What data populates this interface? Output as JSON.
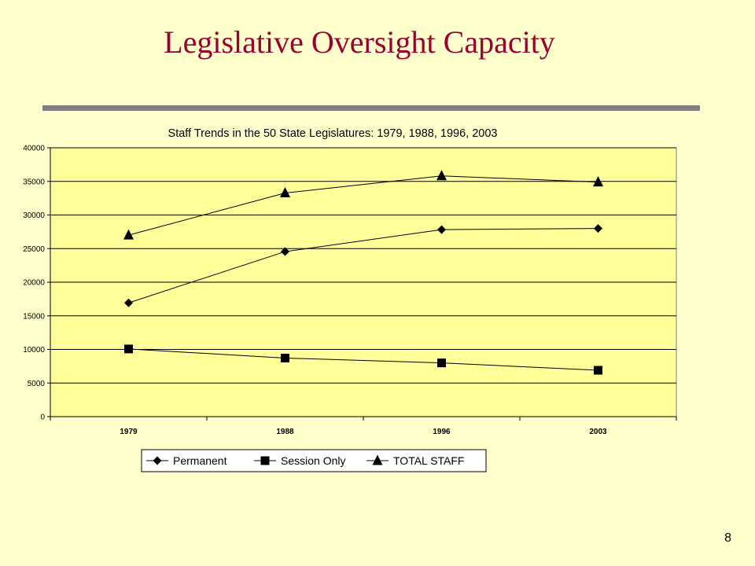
{
  "slide": {
    "title": "Legislative Oversight Capacity",
    "page_number": "8"
  },
  "colors": {
    "title": "#990033",
    "background": "#ffffcc",
    "plot_area": "#ffff99",
    "rule": "#808080"
  },
  "chart_data": {
    "type": "line",
    "title": "Staff Trends in the 50 State Legislatures: 1979, 1988, 1996, 2003",
    "xlabel": "",
    "ylabel": "",
    "categories": [
      "1979",
      "1988",
      "1996",
      "2003"
    ],
    "ylim": [
      0,
      40000
    ],
    "yticks": [
      0,
      5000,
      10000,
      15000,
      20000,
      25000,
      30000,
      35000,
      40000
    ],
    "grid": true,
    "legend_position": "bottom",
    "series": [
      {
        "name": "Permanent",
        "marker": "diamond",
        "values": [
          16930,
          24555,
          27822,
          28000
        ]
      },
      {
        "name": "Session Only",
        "marker": "square",
        "values": [
          10070,
          8715,
          7996,
          6900
        ]
      },
      {
        "name": "TOTAL STAFF",
        "marker": "triangle",
        "values": [
          27000,
          33270,
          35818,
          34900
        ]
      }
    ]
  }
}
